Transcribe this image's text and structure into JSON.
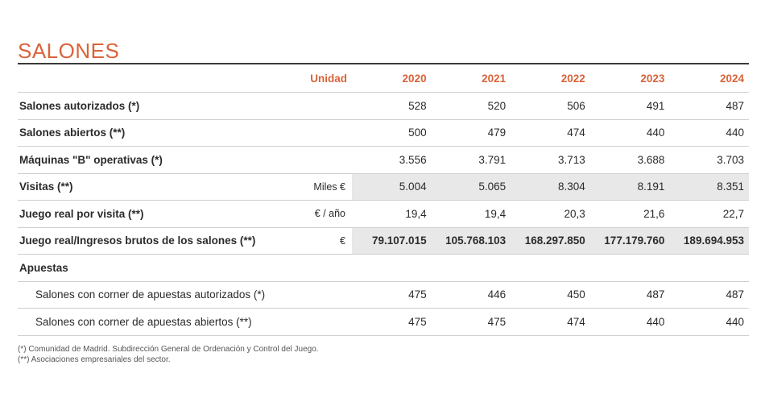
{
  "title": "SALONES",
  "table": {
    "unit_header": "Unidad",
    "years": [
      "2020",
      "2021",
      "2022",
      "2023",
      "2024"
    ],
    "rows": [
      {
        "label": "Salones autorizados (*)",
        "unit": "",
        "values": [
          "528",
          "520",
          "506",
          "491",
          "487"
        ]
      },
      {
        "label": "Salones abiertos (**)",
        "unit": "",
        "values": [
          "500",
          "479",
          "474",
          "440",
          "440"
        ]
      },
      {
        "label": "Máquinas \"B\" operativas (*)",
        "unit": "",
        "values": [
          "3.556",
          "3.791",
          "3.713",
          "3.688",
          "3.703"
        ]
      },
      {
        "label": "Visitas (**)",
        "unit": "Miles €",
        "values": [
          "5.004",
          "5.065",
          "8.304",
          "8.191",
          "8.351"
        ]
      },
      {
        "label": "Juego real por visita (**)",
        "unit": "€ / año",
        "values": [
          "19,4",
          "19,4",
          "20,3",
          "21,6",
          "22,7"
        ]
      },
      {
        "label": "Juego real/Ingresos brutos de los salones (**)",
        "unit": "€",
        "values": [
          "79.107.015",
          "105.768.103",
          "168.297.850",
          "177.179.760",
          "189.694.953"
        ]
      },
      {
        "label": "Apuestas",
        "unit": "",
        "values": [
          "",
          "",
          "",
          "",
          ""
        ]
      },
      {
        "label": "Salones con corner de apuestas autorizados (*)",
        "unit": "",
        "values": [
          "475",
          "446",
          "450",
          "487",
          "487"
        ]
      },
      {
        "label": "Salones con corner de apuestas abiertos (**)",
        "unit": "",
        "values": [
          "475",
          "475",
          "474",
          "440",
          "440"
        ]
      }
    ]
  },
  "notes": [
    "(*) Comunidad de Madrid. Subdirección General de Ordenación y Control del Juego.",
    "(**) Asociaciones empresariales del sector."
  ]
}
